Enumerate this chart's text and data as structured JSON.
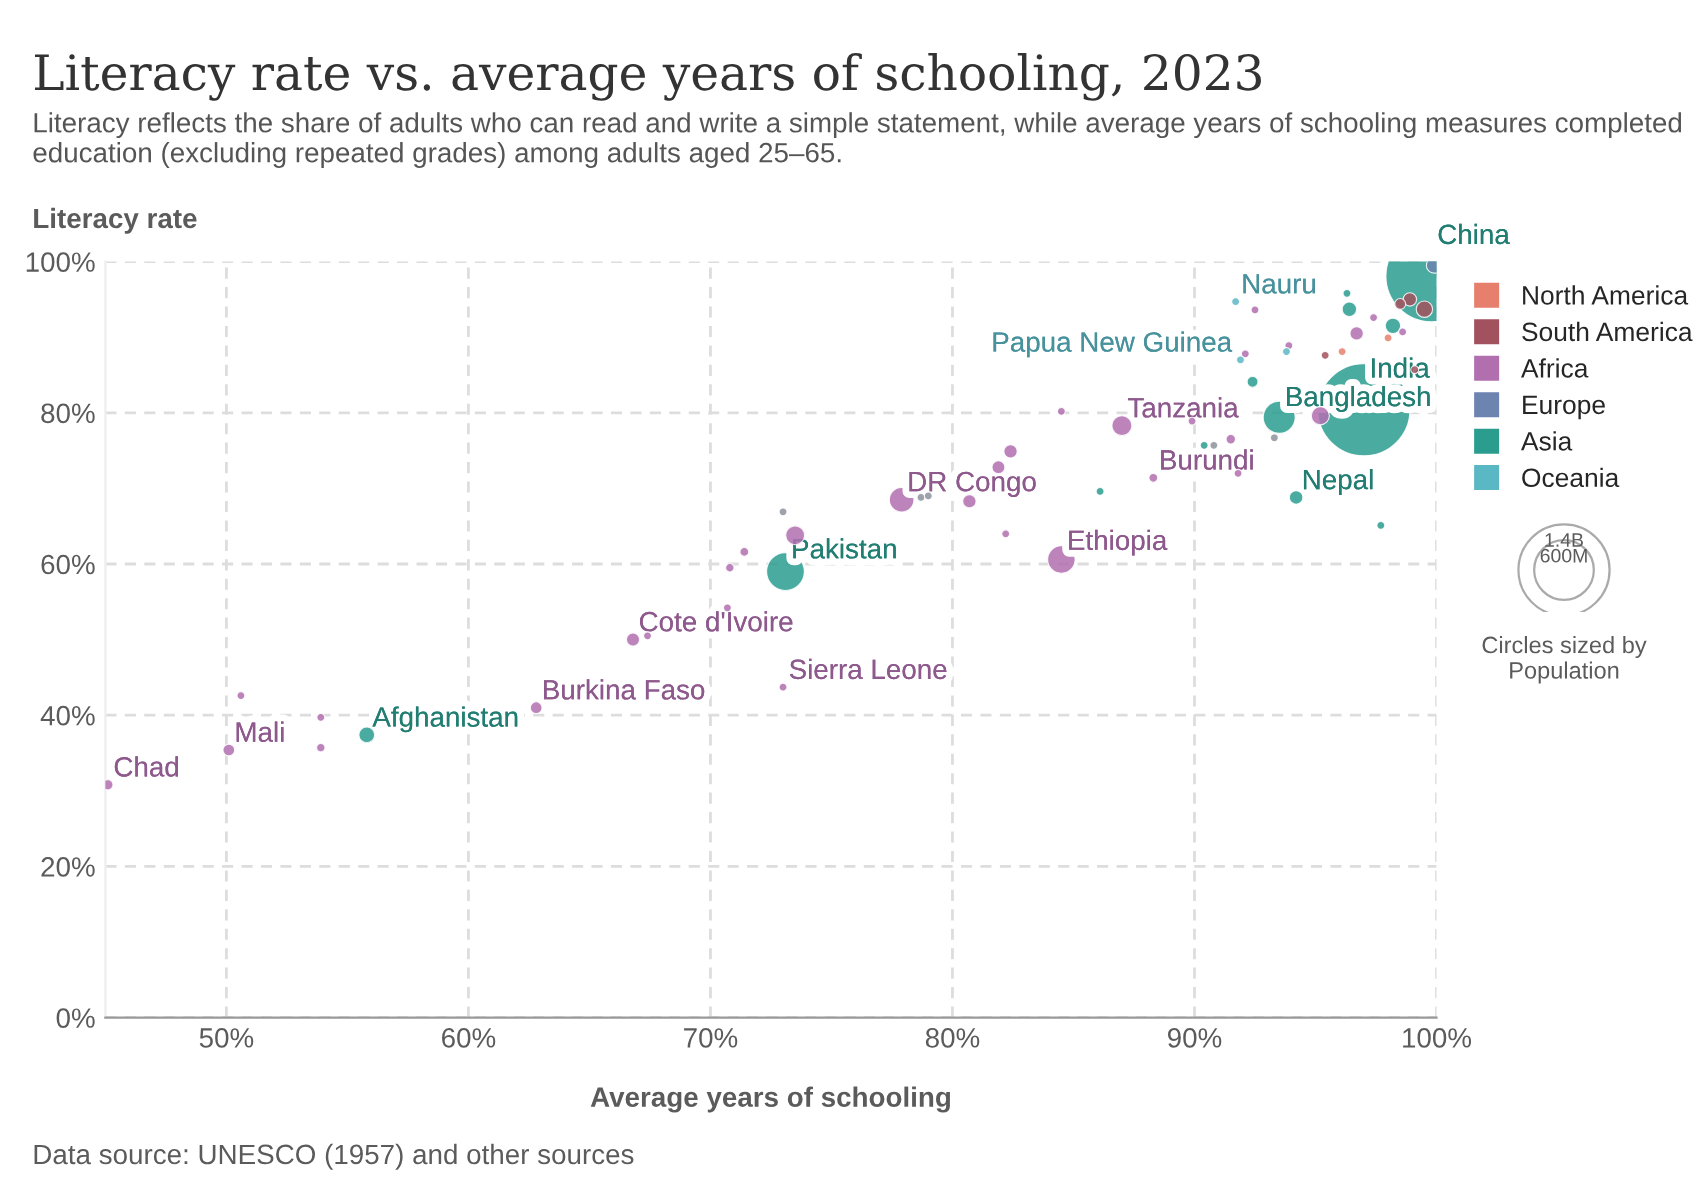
{
  "chart_data": {
    "type": "bubble",
    "title": "Literacy rate vs. average years of schooling, 2023",
    "subtitle": "Literacy reflects the share of adults who can read and write a simple statement, while average years of schooling measures completed education (excluding repeated grades) among adults aged 25–65.",
    "xlabel": "Average years of schooling",
    "ylabel": "Literacy rate",
    "xlim": [
      45,
      100
    ],
    "ylim": [
      0,
      100
    ],
    "xticks": [
      {
        "value": 50,
        "label": "50%"
      },
      {
        "value": 60,
        "label": "60%"
      },
      {
        "value": 70,
        "label": "70%"
      },
      {
        "value": 80,
        "label": "80%"
      },
      {
        "value": 90,
        "label": "90%"
      },
      {
        "value": 100,
        "label": "100%"
      }
    ],
    "yticks": [
      {
        "value": 0,
        "label": "0%"
      },
      {
        "value": 20,
        "label": "20%"
      },
      {
        "value": 40,
        "label": "40%"
      },
      {
        "value": 60,
        "label": "60%"
      },
      {
        "value": 80,
        "label": "80%"
      },
      {
        "value": 100,
        "label": "100%"
      }
    ],
    "grid": true,
    "legend": "right",
    "marker": "circle",
    "size_legend": [
      {
        "value": 1400,
        "label": "1.4B"
      },
      {
        "value": 600,
        "label": "600M"
      }
    ],
    "legend_title": "Circles sized by Population",
    "series": [
      {
        "name": "North America",
        "color": "#e6806d",
        "x": [
          96.1,
          98.0
        ],
        "values": [
          88.1,
          89.9
        ],
        "sizes": [
          10,
          8
        ]
      },
      {
        "name": "South America",
        "color": "#a2515e",
        "x": [
          95.4,
          99.1,
          98.9,
          99.5,
          98.5
        ],
        "values": [
          87.6,
          85.7,
          95.0,
          93.7,
          94.4
        ],
        "sizes": [
          10,
          8,
          30,
          45,
          20
        ]
      },
      {
        "name": "Africa",
        "color": "#b16fb0",
        "x": [
          45.1,
          50.1,
          50.6,
          53.9,
          53.9,
          62.8,
          66.8,
          67.4,
          73.0,
          70.7,
          70.8,
          71.4,
          73.5,
          77.9,
          80.7,
          81.9,
          82.4,
          82.2,
          84.5,
          84.5,
          87.0,
          88.3,
          89.9,
          91.5,
          91.8,
          95.2,
          92.1,
          93.9,
          92.5,
          96.7,
          97.4,
          98.6
        ],
        "values": [
          30.8,
          35.4,
          42.6,
          39.7,
          35.7,
          41.0,
          50.0,
          50.5,
          43.7,
          54.2,
          59.5,
          61.6,
          63.8,
          68.5,
          68.3,
          72.8,
          74.9,
          64.0,
          60.6,
          80.2,
          78.3,
          71.4,
          78.9,
          76.5,
          72.0,
          79.6,
          87.8,
          88.9,
          93.6,
          90.5,
          92.6,
          90.7
        ],
        "sizes": [
          18,
          23,
          8,
          8,
          12,
          23,
          29,
          5,
          9,
          7,
          12,
          13,
          60,
          102,
          30,
          28,
          30,
          8,
          127,
          8,
          67,
          13,
          8,
          15,
          3,
          55,
          8,
          7,
          8,
          30,
          10,
          8
        ]
      },
      {
        "name": "Europe",
        "color": "#6d83b0",
        "x": [
          99.9
        ],
        "values": [
          99.5
        ],
        "sizes": [
          40
        ]
      },
      {
        "name": "Asia",
        "color": "#2a9d8f",
        "x": [
          55.8,
          73.1,
          86.1,
          90.4,
          94.2,
          97.7,
          93.5,
          97.0,
          99.8,
          92.4,
          96.4,
          96.3,
          98.2
        ],
        "values": [
          37.4,
          59.0,
          69.6,
          75.7,
          68.8,
          65.1,
          79.4,
          80.4,
          98.1,
          84.1,
          93.7,
          95.8,
          91.5
        ],
        "sizes": [
          42,
          240,
          5,
          5,
          31,
          4,
          173,
          1430,
          1410,
          20,
          35,
          5,
          40
        ]
      },
      {
        "name": "Oceania",
        "color": "#5ab7c4",
        "x": [
          91.9,
          93.8,
          91.7
        ],
        "values": [
          87.0,
          88.1,
          94.7
        ],
        "sizes": [
          10,
          5,
          3
        ]
      },
      {
        "color": "#8c929c",
        "x": [
          73.0,
          78.7,
          79.0,
          90.8,
          93.3
        ],
        "values": [
          66.9,
          68.8,
          69.0,
          75.7,
          76.7
        ],
        "sizes": [
          5,
          5,
          5,
          5,
          8
        ]
      }
    ],
    "annotations": [
      {
        "text": "Chad",
        "x": 45.1,
        "y": 30.8
      },
      {
        "text": "Mali",
        "x": 50.1,
        "y": 35.4
      },
      {
        "text": "Afghanistan",
        "x": 55.8,
        "y": 37.4
      },
      {
        "text": "Burkina Faso",
        "x": 62.8,
        "y": 41.0
      },
      {
        "text": "Cote d'Ivoire",
        "x": 66.8,
        "y": 50.0
      },
      {
        "text": "Sierra Leone",
        "x": 73.0,
        "y": 43.7
      },
      {
        "text": "Pakistan",
        "x": 73.1,
        "y": 59.0
      },
      {
        "text": "DR Congo",
        "x": 77.9,
        "y": 68.5
      },
      {
        "text": "Ethiopia",
        "x": 84.5,
        "y": 60.6
      },
      {
        "text": "Tanzania",
        "x": 87.0,
        "y": 78.3
      },
      {
        "text": "Burundi",
        "x": 88.3,
        "y": 71.4
      },
      {
        "text": "Nepal",
        "x": 94.2,
        "y": 68.8
      },
      {
        "text": "Bangladesh",
        "x": 93.5,
        "y": 79.4
      },
      {
        "text": "Papua New Guinea",
        "x": 91.9,
        "y": 87.0
      },
      {
        "text": "India",
        "x": 97.0,
        "y": 80.4
      },
      {
        "text": "Nauru",
        "x": 91.7,
        "y": 94.7
      },
      {
        "text": "China",
        "x": 99.8,
        "y": 98.1
      },
      "Data source: UNESCO (1957) and other sources"
    ]
  }
}
